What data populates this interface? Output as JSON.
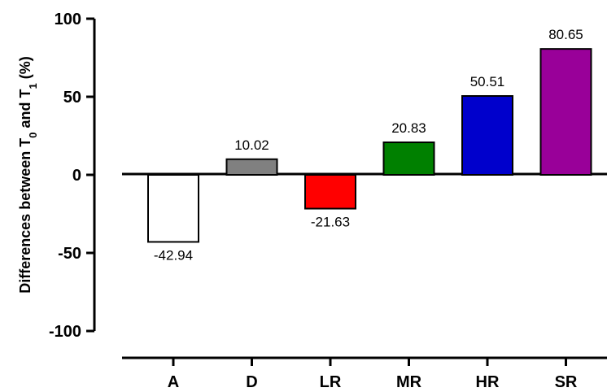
{
  "chart_data": {
    "type": "bar",
    "title": "",
    "xlabel": "",
    "ylabel": {
      "prefix": "Differences between T",
      "sub1": "0",
      "mid": " and T",
      "sub2": "1",
      "suffix": " (%)"
    },
    "ylim": [
      -100,
      100
    ],
    "yticks": [
      100,
      50,
      0,
      -50,
      -100
    ],
    "ytick_labels": [
      "100",
      "50",
      "0",
      "-50",
      "-100"
    ],
    "categories": [
      "A",
      "D",
      "LR",
      "MR",
      "HR",
      "SR"
    ],
    "values": [
      -42.94,
      10.02,
      -21.63,
      20.83,
      50.51,
      80.65
    ],
    "value_labels": [
      "-42.94",
      "10.02",
      "-21.63",
      "20.83",
      "50.51",
      "80.65"
    ],
    "colors": [
      "#ffffff",
      "#808080",
      "#ff0000",
      "#008000",
      "#0000cc",
      "#990099"
    ],
    "bar_edge_color": "#000000",
    "grid": false,
    "legend": "none"
  }
}
